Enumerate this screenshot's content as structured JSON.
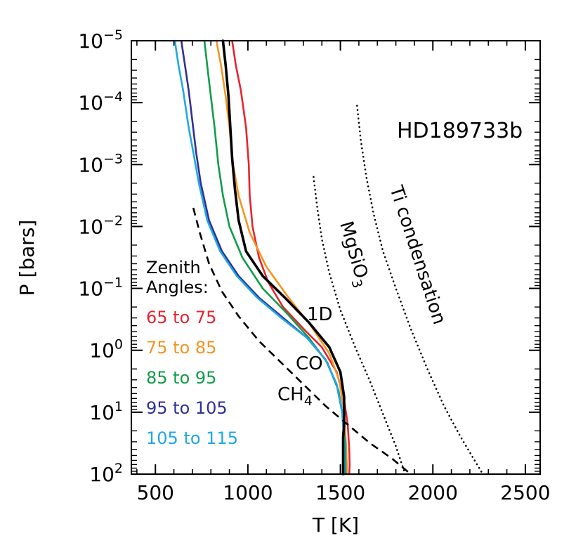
{
  "chart_data": {
    "type": "line",
    "title": "HD189733b",
    "xlabel": "T [K]",
    "ylabel": "P [bars]",
    "xlim": [
      370,
      2580
    ],
    "ylim": [
      -5,
      2
    ],
    "y_scale": "log10, inverted (low pressure at top)",
    "grid": false,
    "x_ticks": [
      "500",
      "1000",
      "1500",
      "2000",
      "2500"
    ],
    "y_ticks": [
      {
        "base": "10",
        "exp": "−5"
      },
      {
        "base": "10",
        "exp": "−4"
      },
      {
        "base": "10",
        "exp": "−3"
      },
      {
        "base": "10",
        "exp": "−2"
      },
      {
        "base": "10",
        "exp": "−1"
      },
      {
        "base": "10",
        "exp": "0"
      },
      {
        "base": "10",
        "exp": "1"
      },
      {
        "base": "10",
        "exp": "2"
      }
    ],
    "legend": {
      "title_line1": "Zenith",
      "title_line2": "Angles:",
      "placement": "lower-left",
      "items": [
        {
          "label": "65 to 75",
          "color": "#e8242e"
        },
        {
          "label": "75 to 85",
          "color": "#f5941f"
        },
        {
          "label": "85 to 95",
          "color": "#0f9d48"
        },
        {
          "label": "95 to 105",
          "color": "#2e3192"
        },
        {
          "label": "105 to 115",
          "color": "#1fa8e6"
        }
      ]
    },
    "annotations": {
      "planet": "HD189733b",
      "one_d": "1D",
      "co": "CO",
      "ch4_base": "CH",
      "ch4_sub": "4",
      "mgsio3_base": "MgSiO",
      "mgsio3_sub": "3",
      "ti": "Ti condensation"
    },
    "series": [
      {
        "name": "65 to 75",
        "color": "#e8242e",
        "style": "solid",
        "T": [
          915,
          935,
          962,
          990,
          1005,
          1010,
          1025,
          1060,
          1110,
          1190,
          1300,
          1400,
          1480,
          1520,
          1540,
          1548,
          1550,
          1548
        ],
        "logP": [
          -5,
          -4.6,
          -4.2,
          -3.6,
          -3.0,
          -2.5,
          -2.0,
          -1.5,
          -1.1,
          -0.7,
          -0.35,
          -0.05,
          0.35,
          0.8,
          1.2,
          1.6,
          1.85,
          2
        ]
      },
      {
        "name": "75 to 85",
        "color": "#f5941f",
        "style": "solid",
        "T": [
          830,
          855,
          880,
          900,
          920,
          950,
          1010,
          1100,
          1220,
          1340,
          1440,
          1495,
          1520,
          1530,
          1535,
          1535
        ],
        "logP": [
          -5,
          -4.6,
          -4.1,
          -3.6,
          -3.0,
          -2.5,
          -1.9,
          -1.35,
          -0.85,
          -0.4,
          0.05,
          0.5,
          1.0,
          1.5,
          1.85,
          2
        ]
      },
      {
        "name": "85 to 95",
        "color": "#0f9d48",
        "style": "solid",
        "T": [
          765,
          780,
          800,
          820,
          840,
          865,
          900,
          970,
          1080,
          1210,
          1330,
          1430,
          1490,
          1515,
          1525,
          1528,
          1528
        ],
        "logP": [
          -5,
          -4.6,
          -4.1,
          -3.6,
          -3.0,
          -2.5,
          -2.0,
          -1.5,
          -1.0,
          -0.6,
          -0.2,
          0.2,
          0.65,
          1.1,
          1.5,
          1.85,
          2
        ]
      },
      {
        "name": "95 to 105",
        "color": "#2e3192",
        "style": "solid",
        "T": [
          640,
          660,
          680,
          700,
          720,
          745,
          790,
          860,
          950,
          1060,
          1200,
          1320,
          1420,
          1480,
          1510,
          1520,
          1522,
          1522
        ],
        "logP": [
          -5,
          -4.6,
          -4.2,
          -3.7,
          -3.2,
          -2.7,
          -2.1,
          -1.6,
          -1.2,
          -0.85,
          -0.5,
          -0.2,
          0.15,
          0.55,
          1.0,
          1.45,
          1.8,
          2
        ]
      },
      {
        "name": "105 to 115",
        "color": "#1fa8e6",
        "style": "solid",
        "T": [
          605,
          625,
          650,
          680,
          705,
          735,
          780,
          850,
          940,
          1050,
          1190,
          1320,
          1420,
          1480,
          1510,
          1520,
          1522,
          1522
        ],
        "logP": [
          -5,
          -4.6,
          -4.2,
          -3.6,
          -3.2,
          -2.7,
          -2.1,
          -1.6,
          -1.2,
          -0.85,
          -0.5,
          -0.2,
          0.15,
          0.55,
          1.0,
          1.45,
          1.8,
          2
        ]
      },
      {
        "name": "1D",
        "color": "#000000",
        "style": "solid-thick",
        "T": [
          865,
          880,
          895,
          905,
          915,
          930,
          950,
          990,
          1080,
          1200,
          1330,
          1440,
          1500,
          1520,
          1520,
          1515,
          1515,
          1515
        ],
        "logP": [
          -5,
          -4.6,
          -4.1,
          -3.6,
          -3.1,
          -2.6,
          -2.1,
          -1.6,
          -1.2,
          -0.85,
          -0.45,
          -0.05,
          0.35,
          0.75,
          1.2,
          1.4,
          1.7,
          2
        ]
      },
      {
        "name": "CH4/CO boundary",
        "color": "#000000",
        "style": "dashed",
        "T": [
          705,
          740,
          790,
          860,
          950,
          1060,
          1180,
          1300,
          1420,
          1540,
          1660,
          1780,
          1880
        ],
        "logP": [
          -2.3,
          -1.9,
          -1.4,
          -0.95,
          -0.55,
          -0.15,
          0.2,
          0.55,
          0.9,
          1.2,
          1.5,
          1.75,
          2
        ]
      },
      {
        "name": "MgSiO3 condensation",
        "color": "#000000",
        "style": "dotted",
        "T": [
          1355,
          1375,
          1400,
          1440,
          1500,
          1580,
          1660,
          1740,
          1800,
          1850
        ],
        "logP": [
          -2.8,
          -2.3,
          -1.8,
          -1.25,
          -0.65,
          -0.05,
          0.5,
          1.1,
          1.55,
          2
        ]
      },
      {
        "name": "Ti condensation",
        "color": "#000000",
        "style": "dotted",
        "T": [
          1590,
          1610,
          1640,
          1680,
          1730,
          1800,
          1880,
          1970,
          2060,
          2150,
          2230,
          2270
        ],
        "logP": [
          -3.95,
          -3.4,
          -2.8,
          -2.2,
          -1.6,
          -1.0,
          -0.35,
          0.3,
          0.9,
          1.4,
          1.8,
          2
        ]
      }
    ]
  }
}
